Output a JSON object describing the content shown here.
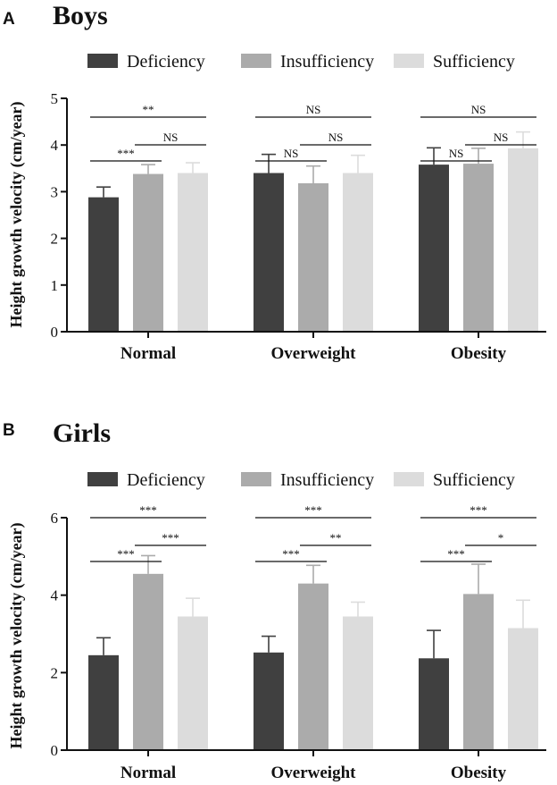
{
  "colors": {
    "Deficiency": "#404040",
    "Insufficiency": "#ababab",
    "Sufficiency": "#dcdcdc",
    "axis": "#111111"
  },
  "chart_data": [
    {
      "type": "bar",
      "panel": "A",
      "title": "Boys",
      "xlabel": "",
      "ylabel": "Height growth velocity (cm/year)",
      "ylim": [
        0,
        5
      ],
      "yticks": [
        0,
        1,
        2,
        3,
        4,
        5
      ],
      "categories": [
        "Normal",
        "Overweight",
        "Obesity"
      ],
      "legend": [
        "Deficiency",
        "Insufficiency",
        "Sufficiency"
      ],
      "series": [
        {
          "name": "Deficiency",
          "values": [
            2.88,
            3.4,
            3.58
          ],
          "errors": [
            0.22,
            0.4,
            0.36
          ]
        },
        {
          "name": "Insufficiency",
          "values": [
            3.38,
            3.18,
            3.6
          ],
          "errors": [
            0.2,
            0.37,
            0.33
          ]
        },
        {
          "name": "Sufficiency",
          "values": [
            3.4,
            3.4,
            3.93
          ],
          "errors": [
            0.22,
            0.38,
            0.35
          ]
        }
      ],
      "significance": [
        {
          "category": "Normal",
          "from": 0,
          "to": 2,
          "label": "**"
        },
        {
          "category": "Normal",
          "from": 0,
          "to": 1,
          "label": "***"
        },
        {
          "category": "Normal",
          "from": 1,
          "to": 2,
          "label": "NS"
        },
        {
          "category": "Overweight",
          "from": 0,
          "to": 2,
          "label": "NS"
        },
        {
          "category": "Overweight",
          "from": 0,
          "to": 1,
          "label": "NS"
        },
        {
          "category": "Overweight",
          "from": 1,
          "to": 2,
          "label": "NS"
        },
        {
          "category": "Obesity",
          "from": 0,
          "to": 2,
          "label": "NS"
        },
        {
          "category": "Obesity",
          "from": 0,
          "to": 1,
          "label": "NS"
        },
        {
          "category": "Obesity",
          "from": 1,
          "to": 2,
          "label": "NS"
        }
      ]
    },
    {
      "type": "bar",
      "panel": "B",
      "title": "Girls",
      "xlabel": "",
      "ylabel": "Height growth velocity (cm/year)",
      "ylim": [
        0,
        6
      ],
      "yticks": [
        0,
        2,
        4,
        6
      ],
      "categories": [
        "Normal",
        "Overweight",
        "Obesity"
      ],
      "legend": [
        "Deficiency",
        "Insufficiency",
        "Sufficiency"
      ],
      "series": [
        {
          "name": "Deficiency",
          "values": [
            2.45,
            2.52,
            2.37
          ],
          "errors": [
            0.45,
            0.42,
            0.72
          ]
        },
        {
          "name": "Insufficiency",
          "values": [
            4.55,
            4.3,
            4.03
          ],
          "errors": [
            0.47,
            0.47,
            0.77
          ]
        },
        {
          "name": "Sufficiency",
          "values": [
            3.45,
            3.45,
            3.15
          ],
          "errors": [
            0.47,
            0.37,
            0.72
          ]
        }
      ],
      "significance": [
        {
          "category": "Normal",
          "from": 0,
          "to": 2,
          "label": "***"
        },
        {
          "category": "Normal",
          "from": 0,
          "to": 1,
          "label": "***"
        },
        {
          "category": "Normal",
          "from": 1,
          "to": 2,
          "label": "***"
        },
        {
          "category": "Overweight",
          "from": 0,
          "to": 2,
          "label": "***"
        },
        {
          "category": "Overweight",
          "from": 0,
          "to": 1,
          "label": "***"
        },
        {
          "category": "Overweight",
          "from": 1,
          "to": 2,
          "label": "**"
        },
        {
          "category": "Obesity",
          "from": 0,
          "to": 2,
          "label": "***"
        },
        {
          "category": "Obesity",
          "from": 0,
          "to": 1,
          "label": "***"
        },
        {
          "category": "Obesity",
          "from": 1,
          "to": 2,
          "label": "*"
        }
      ]
    }
  ]
}
